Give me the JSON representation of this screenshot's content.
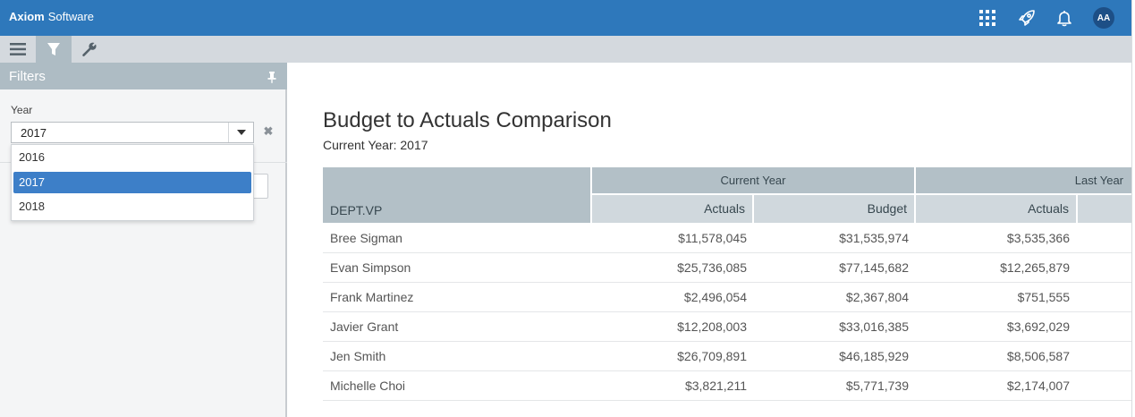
{
  "header": {
    "brand_bold": "Axiom",
    "brand_light": "Software",
    "avatar_initials": "AA",
    "icons": [
      "apps-grid-icon",
      "rocket-icon",
      "bell-icon"
    ],
    "color": "#2e78bb"
  },
  "toolbar": {
    "items": [
      "menu-icon",
      "filter-icon",
      "wrench-icon"
    ],
    "active": "filter-icon"
  },
  "filters": {
    "title": "Filters",
    "year_label": "Year",
    "year_value": "2017",
    "options": [
      "2016",
      "2017",
      "2018"
    ],
    "selected_option": "2017",
    "accent": "#3d7fc8"
  },
  "report": {
    "title": "Budget to Actuals Comparison",
    "subtitle": "Current Year: 2017",
    "group_headers": [
      "Current Year",
      "Last Year"
    ],
    "columns": [
      "DEPT.VP",
      "Actuals",
      "Budget",
      "Actuals"
    ],
    "rows": [
      {
        "name": "Bree Sigman",
        "cy_actuals": "$11,578,045",
        "cy_budget": "$31,535,974",
        "ly_actuals": "$3,535,366"
      },
      {
        "name": "Evan Simpson",
        "cy_actuals": "$25,736,085",
        "cy_budget": "$77,145,682",
        "ly_actuals": "$12,265,879"
      },
      {
        "name": "Frank Martinez",
        "cy_actuals": "$2,496,054",
        "cy_budget": "$2,367,804",
        "ly_actuals": "$751,555"
      },
      {
        "name": "Javier Grant",
        "cy_actuals": "$12,208,003",
        "cy_budget": "$33,016,385",
        "ly_actuals": "$3,692,029"
      },
      {
        "name": "Jen Smith",
        "cy_actuals": "$26,709,891",
        "cy_budget": "$46,185,929",
        "ly_actuals": "$8,506,587"
      },
      {
        "name": "Michelle Choi",
        "cy_actuals": "$3,821,211",
        "cy_budget": "$5,771,739",
        "ly_actuals": "$2,174,007"
      }
    ]
  }
}
